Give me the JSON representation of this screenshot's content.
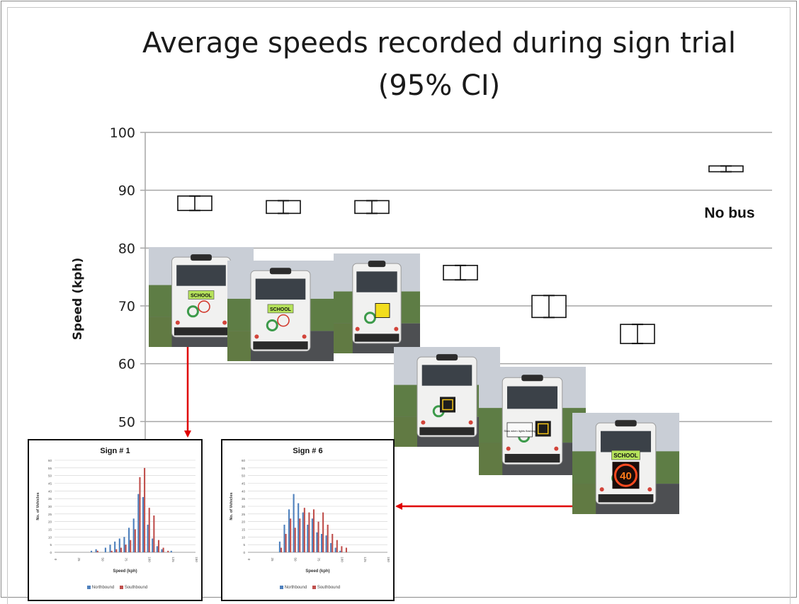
{
  "chart_data": [
    {
      "type": "error-bar",
      "title": "Average speeds recorded during sign trial",
      "subtitle": "(95% CI)",
      "ylabel": "Speed (kph)",
      "ylim": [
        50,
        100
      ],
      "yticks": [
        50,
        60,
        70,
        80,
        90,
        100
      ],
      "grid": true,
      "series": [
        {
          "points": [
            {
              "low": 86.5,
              "high": 89.0
            },
            {
              "low": 86.0,
              "high": 88.2
            },
            {
              "low": 86.0,
              "high": 88.2
            },
            {
              "low": 74.5,
              "high": 77.0
            },
            {
              "low": 68.0,
              "high": 71.8
            },
            {
              "low": 63.5,
              "high": 66.8
            },
            {
              "low": 93.2,
              "high": 94.2,
              "label": "No bus"
            }
          ]
        }
      ]
    },
    {
      "type": "bar",
      "title": "Sign # 1",
      "xlabel": "Speed (kph)",
      "ylabel": "No. of Vehicles",
      "ylim": [
        0,
        60
      ],
      "yticks": [
        0,
        5,
        10,
        15,
        20,
        25,
        30,
        35,
        40,
        45,
        50,
        55,
        60
      ],
      "xticks": [
        0,
        25,
        50,
        75,
        100,
        125,
        150
      ],
      "categories": [
        0,
        5,
        10,
        15,
        20,
        25,
        30,
        35,
        40,
        45,
        50,
        55,
        60,
        65,
        70,
        75,
        80,
        85,
        90,
        95,
        100,
        105,
        110,
        115,
        120,
        125,
        130,
        135,
        140,
        145,
        150
      ],
      "series": [
        {
          "name": "Northbound",
          "values": [
            0,
            0,
            0,
            0,
            0,
            0,
            0,
            0,
            1,
            2,
            0,
            3,
            5,
            7,
            9,
            10,
            16,
            22,
            38,
            36,
            18,
            9,
            4,
            2,
            0,
            1,
            0,
            0,
            0,
            0,
            0
          ]
        },
        {
          "name": "Southbound",
          "values": [
            0,
            0,
            0,
            0,
            0,
            0,
            0,
            0,
            0,
            1,
            0,
            0,
            1,
            2,
            3,
            5,
            8,
            15,
            49,
            55,
            29,
            24,
            8,
            3,
            1,
            0,
            0,
            0,
            0,
            0,
            0
          ]
        }
      ]
    },
    {
      "type": "bar",
      "title": "Sign # 6",
      "xlabel": "Speed (kph)",
      "ylabel": "No. of Vehicles",
      "ylim": [
        0,
        60
      ],
      "yticks": [
        0,
        5,
        10,
        15,
        20,
        25,
        30,
        35,
        40,
        45,
        50,
        55,
        60
      ],
      "xticks": [
        0,
        25,
        50,
        75,
        100,
        125,
        150
      ],
      "categories": [
        0,
        5,
        10,
        15,
        20,
        25,
        30,
        35,
        40,
        45,
        50,
        55,
        60,
        65,
        70,
        75,
        80,
        85,
        90,
        95,
        100,
        105,
        110,
        115,
        120,
        125,
        130,
        135,
        140,
        145,
        150
      ],
      "series": [
        {
          "name": "Northbound",
          "values": [
            0,
            0,
            0,
            0,
            0,
            0,
            0,
            7,
            18,
            28,
            38,
            32,
            26,
            18,
            22,
            13,
            12,
            11,
            6,
            3,
            1,
            0,
            0,
            0,
            0,
            0,
            0,
            0,
            0,
            0,
            0
          ]
        },
        {
          "name": "Southbound",
          "values": [
            0,
            0,
            0,
            0,
            0,
            0,
            0,
            3,
            12,
            22,
            16,
            22,
            29,
            26,
            28,
            20,
            26,
            18,
            12,
            8,
            4,
            3,
            0,
            0,
            0,
            0,
            0,
            0,
            0,
            0,
            0
          ]
        }
      ]
    }
  ],
  "buses": [
    {
      "icon": "school-bus-rear-icon",
      "sign": "SCHOOL"
    },
    {
      "icon": "school-bus-rear-icon",
      "sign": "SCHOOL"
    },
    {
      "icon": "school-bus-rear-icon",
      "sign": ""
    },
    {
      "icon": "school-bus-rear-icon",
      "sign": ""
    },
    {
      "icon": "school-bus-rear-icon",
      "sign": "Slow when lights flashing"
    },
    {
      "icon": "school-bus-rear-icon",
      "sign": "SCHOOL",
      "sign2": "40"
    }
  ],
  "colors": {
    "northbound": "#4f81bd",
    "southbound": "#c0504d",
    "arrow": "#e00000",
    "grid": "#a6a6a6",
    "school_sign": "#b6e35b"
  }
}
